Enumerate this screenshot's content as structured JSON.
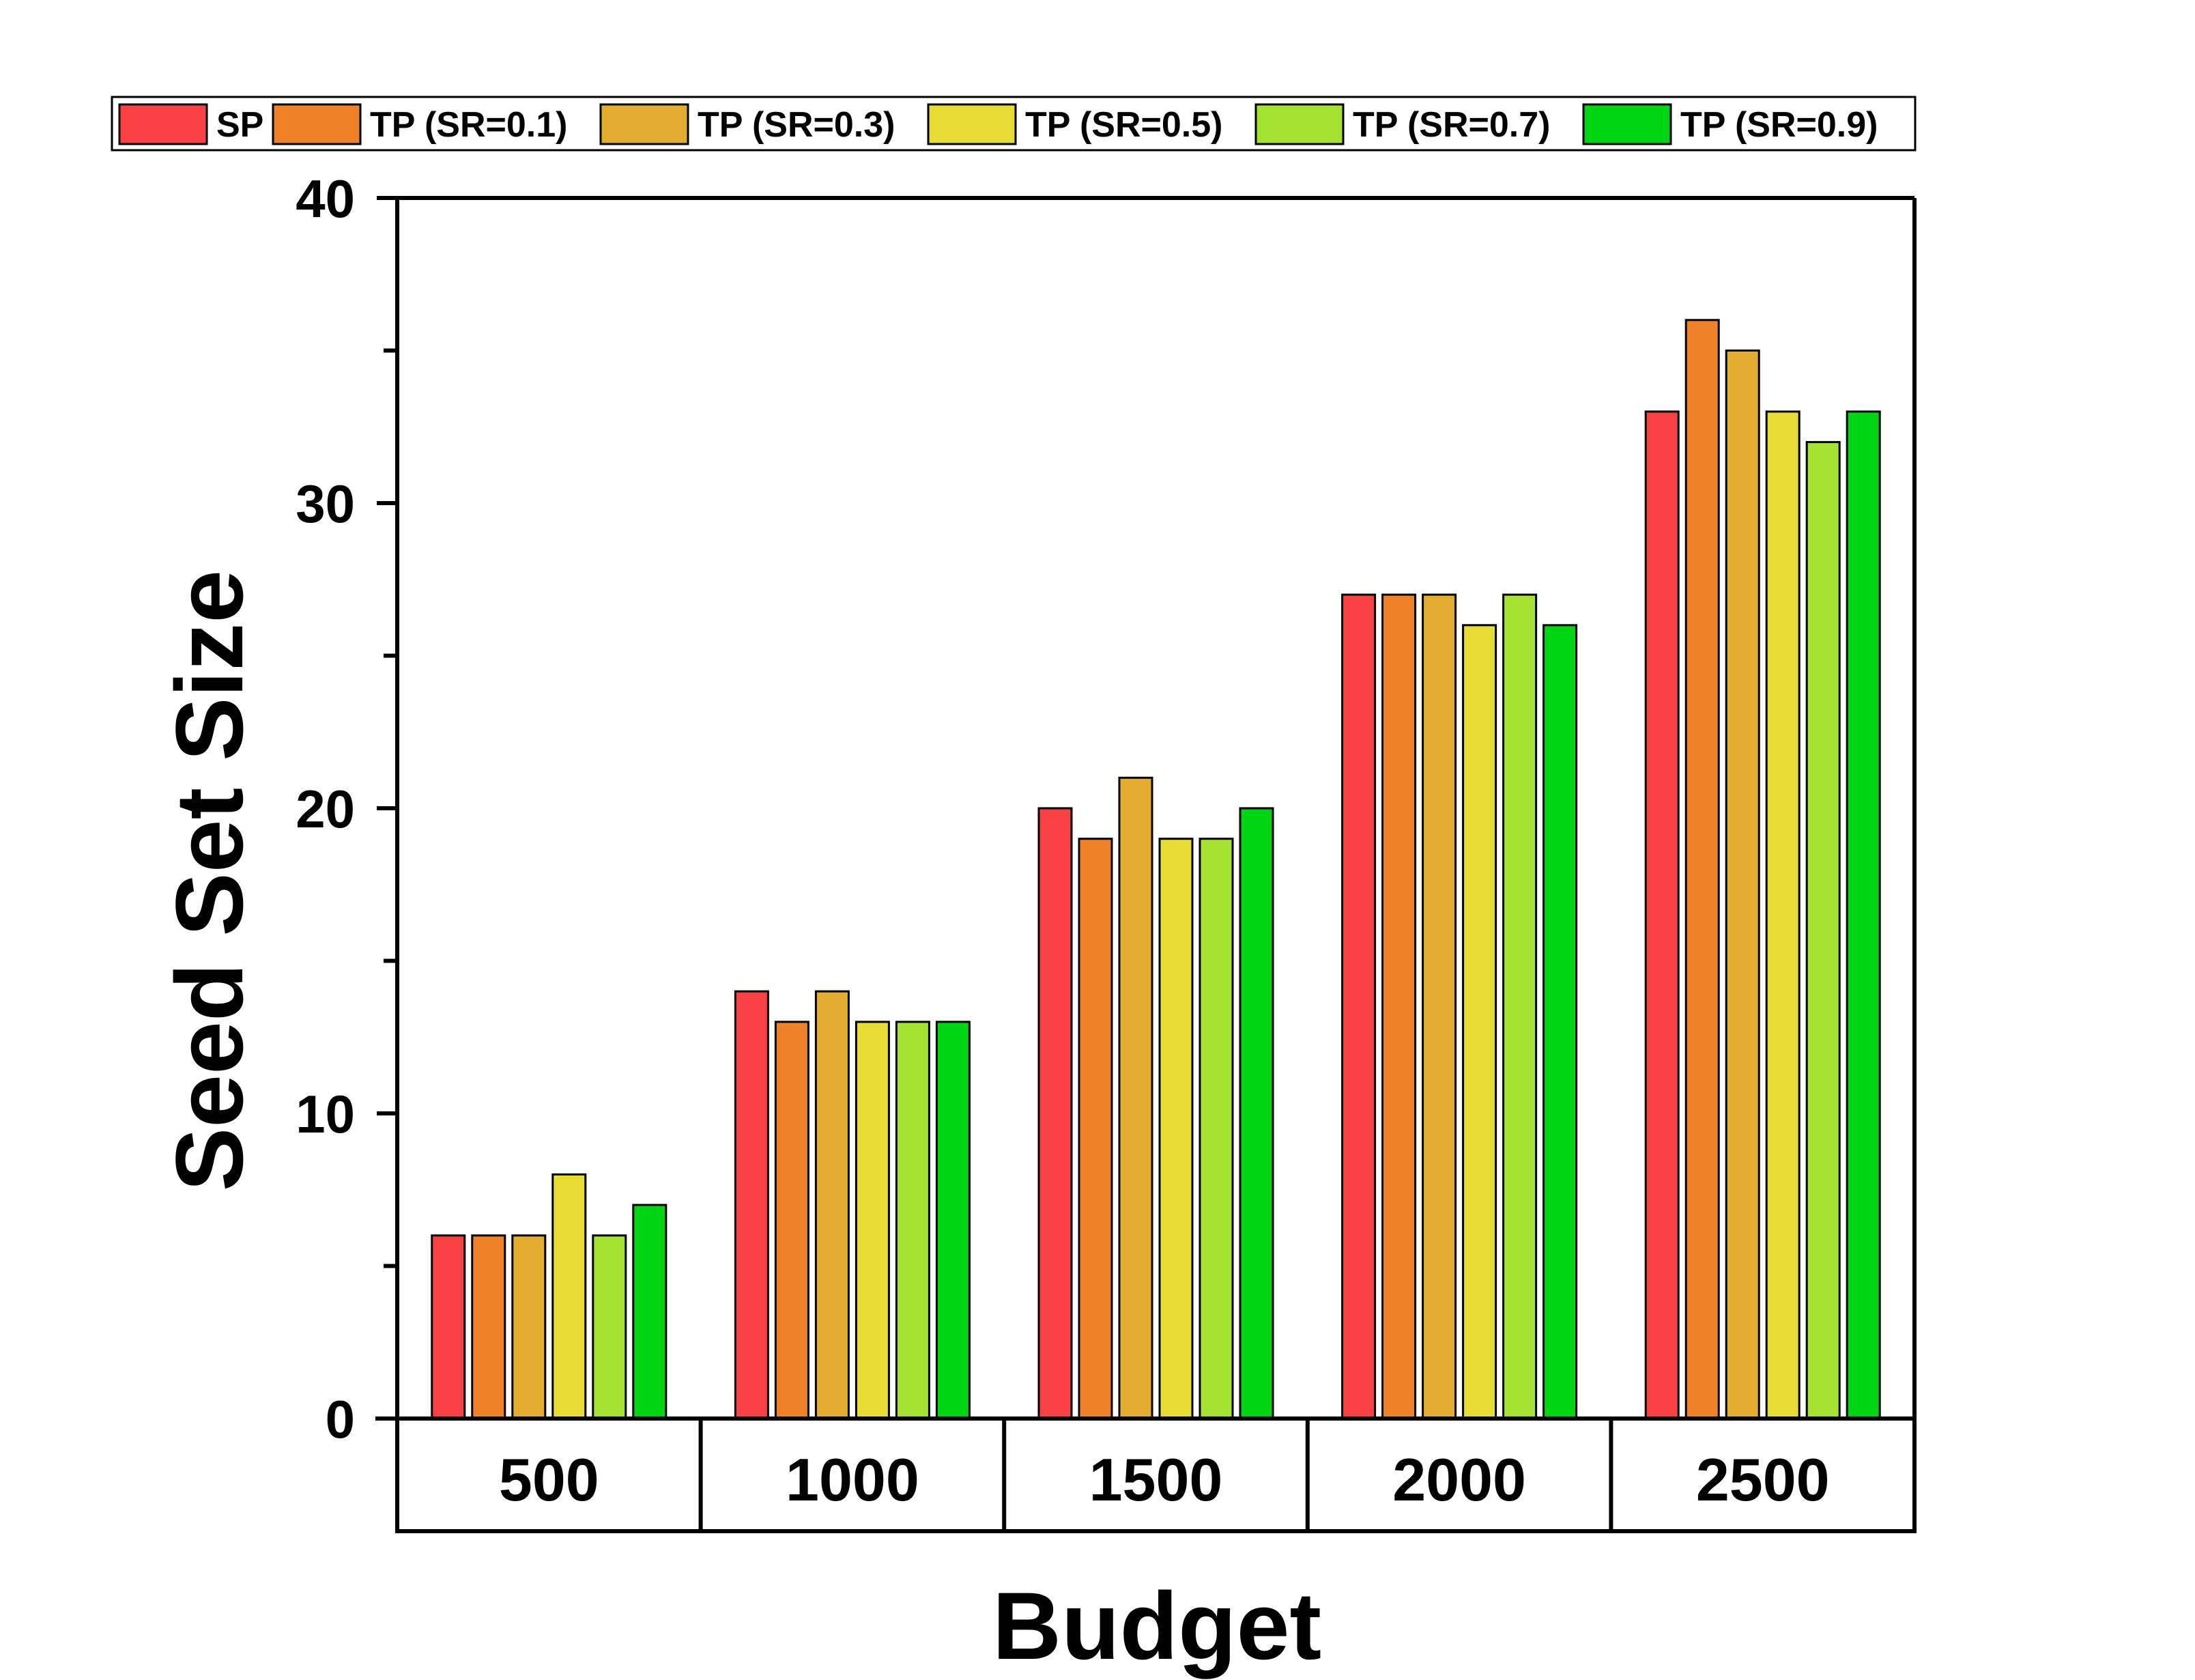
{
  "chart_data": {
    "type": "bar",
    "title": "",
    "xlabel": "Budget",
    "ylabel": "Seed Set Size",
    "ylim": [
      0,
      40
    ],
    "yticks": [
      0,
      10,
      20,
      30,
      40
    ],
    "minor_ticks": [
      5,
      15,
      25,
      35
    ],
    "categories": [
      "500",
      "1000",
      "1500",
      "2000",
      "2500"
    ],
    "series": [
      {
        "name": "SP",
        "color": "#f94144",
        "values": [
          6,
          14,
          20,
          27,
          33
        ]
      },
      {
        "name": "TP (SR=0.1)",
        "color": "#ef8228",
        "values": [
          6,
          13,
          19,
          27,
          36
        ]
      },
      {
        "name": "TP (SR=0.3)",
        "color": "#e4ad2f",
        "values": [
          6,
          14,
          21,
          27,
          35
        ]
      },
      {
        "name": "TP (SR=0.5)",
        "color": "#e6dc34",
        "values": [
          8,
          13,
          19,
          26,
          33
        ]
      },
      {
        "name": "TP (SR=0.7)",
        "color": "#a4e332",
        "values": [
          6,
          13,
          19,
          27,
          32
        ]
      },
      {
        "name": "TP (SR=0.9)",
        "color": "#00d514",
        "values": [
          7,
          13,
          20,
          26,
          33
        ]
      }
    ],
    "legend_position": "top",
    "grid": false
  }
}
